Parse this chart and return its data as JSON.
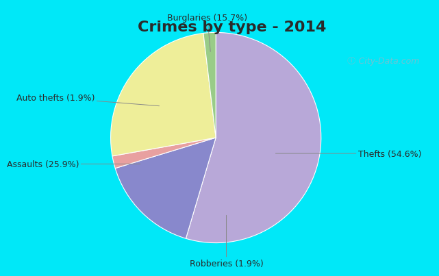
{
  "title": "Crimes by type - 2014",
  "title_color": "#2a2a2a",
  "slices": [
    {
      "label": "Thefts (54.6%)",
      "value": 54.6,
      "color": "#b8a8d8"
    },
    {
      "label": "Burglaries (15.7%)",
      "value": 15.7,
      "color": "#8888cc"
    },
    {
      "label": "Auto thefts (1.9%)",
      "value": 1.9,
      "color": "#e8a0a0"
    },
    {
      "label": "Assaults (25.9%)",
      "value": 25.9,
      "color": "#eeee99"
    },
    {
      "label": "Robberies (1.9%)",
      "value": 1.9,
      "color": "#99cc88"
    }
  ],
  "border_color": "#00e8f8",
  "bg_color": "#c8e8cc",
  "bg_color_right": "#e8e8f4",
  "title_fontsize": 16,
  "label_fontsize": 9,
  "startangle": 90,
  "border_width": 8
}
